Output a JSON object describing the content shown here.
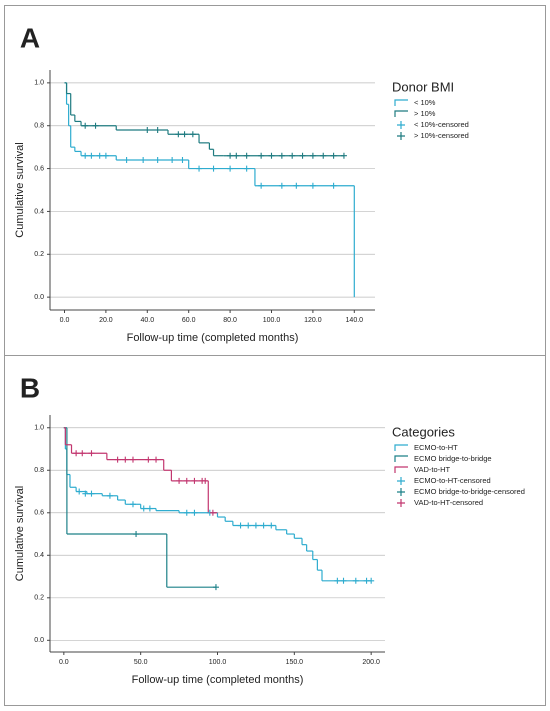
{
  "chart_data": [
    {
      "type": "line",
      "step": true,
      "panel_label": "A",
      "legend_title": "Donor BMI",
      "x_label": "Follow-up time (completed months)",
      "y_label": "Cumulative survival",
      "xlim": [
        -7,
        150
      ],
      "ylim": [
        -0.06,
        1.06
      ],
      "xticks": [
        {
          "value": 0,
          "label": "0.0"
        },
        {
          "value": 20,
          "label": "20.0"
        },
        {
          "value": 40,
          "label": "40.0"
        },
        {
          "value": 60,
          "label": "60.0"
        },
        {
          "value": 80,
          "label": "80.0"
        },
        {
          "value": 100,
          "label": "100.0"
        },
        {
          "value": 120,
          "label": "120.0"
        },
        {
          "value": 140,
          "label": "140.0"
        }
      ],
      "yticks": [
        {
          "value": 0,
          "label": "0.0"
        },
        0.2,
        0.4,
        0.6,
        0.8,
        {
          "value": 1,
          "label": "1.0"
        }
      ],
      "grid": true,
      "series": [
        {
          "name": "< 10%",
          "style": "step",
          "color": "#2eaccf",
          "x": [
            0,
            1,
            2,
            3,
            5,
            8,
            25,
            60,
            92,
            140
          ],
          "values": [
            1.0,
            0.9,
            0.8,
            0.7,
            0.68,
            0.66,
            0.64,
            0.6,
            0.52,
            0.0
          ]
        },
        {
          "name": "> 10%",
          "style": "step",
          "color": "#1f7b80",
          "x": [
            0,
            1,
            3,
            5,
            8,
            25,
            50,
            65,
            70,
            72,
            77,
            135
          ],
          "values": [
            1.0,
            0.95,
            0.85,
            0.82,
            0.8,
            0.78,
            0.76,
            0.72,
            0.69,
            0.66,
            0.66,
            0.66
          ]
        },
        {
          "name": "< 10%-censored",
          "style": "censored",
          "color": "#2eaccf",
          "x": [
            10,
            13,
            17,
            20,
            30,
            38,
            45,
            52,
            57,
            65,
            72,
            80,
            88,
            95,
            105,
            112,
            120,
            130
          ],
          "values": [
            0.66,
            0.66,
            0.66,
            0.66,
            0.64,
            0.64,
            0.64,
            0.64,
            0.64,
            0.6,
            0.6,
            0.6,
            0.6,
            0.52,
            0.52,
            0.52,
            0.52,
            0.52
          ]
        },
        {
          "name": "> 10%-censored",
          "style": "censored",
          "color": "#1f7b80",
          "x": [
            10,
            15,
            40,
            45,
            55,
            58,
            62,
            80,
            83,
            88,
            95,
            100,
            105,
            110,
            115,
            120,
            125,
            130,
            135
          ],
          "values": [
            0.8,
            0.8,
            0.78,
            0.78,
            0.76,
            0.76,
            0.76,
            0.66,
            0.66,
            0.66,
            0.66,
            0.66,
            0.66,
            0.66,
            0.66,
            0.66,
            0.66,
            0.66,
            0.66
          ]
        }
      ]
    },
    {
      "type": "line",
      "step": true,
      "panel_label": "B",
      "legend_title": "Categories",
      "x_label": "Follow-up time (completed months)",
      "y_label": "Cumulative survival",
      "xlim": [
        -9,
        209
      ],
      "ylim": [
        -0.055,
        1.06
      ],
      "xticks": [
        {
          "value": 0,
          "label": "0.0"
        },
        {
          "value": 50,
          "label": "50.0"
        },
        {
          "value": 100,
          "label": "100.0"
        },
        {
          "value": 150,
          "label": "150.0"
        },
        {
          "value": 200,
          "label": "200.0"
        }
      ],
      "yticks": [
        {
          "value": 0,
          "label": "0.0"
        },
        0.2,
        0.4,
        0.6,
        0.8,
        {
          "value": 1,
          "label": "1.0"
        }
      ],
      "grid": true,
      "series": [
        {
          "name": "ECMO-to-HT",
          "style": "step",
          "color": "#2eaccf",
          "x": [
            0,
            1,
            2,
            4,
            8,
            15,
            25,
            35,
            40,
            50,
            60,
            75,
            100,
            105,
            110,
            138,
            145,
            150,
            155,
            158,
            162,
            165,
            168,
            200
          ],
          "values": [
            1.0,
            0.9,
            0.78,
            0.72,
            0.7,
            0.69,
            0.68,
            0.66,
            0.64,
            0.62,
            0.61,
            0.6,
            0.58,
            0.56,
            0.54,
            0.52,
            0.5,
            0.48,
            0.45,
            0.42,
            0.38,
            0.33,
            0.28,
            0.28
          ]
        },
        {
          "name": "ECMO bridge-to-bridge",
          "style": "step",
          "color": "#1c8088",
          "x": [
            0,
            2,
            67,
            99
          ],
          "values": [
            1.0,
            0.5,
            0.25,
            0.25
          ]
        },
        {
          "name": "VAD-to-HT",
          "style": "step",
          "color": "#c2366f",
          "x": [
            0,
            1,
            5,
            28,
            65,
            70,
            94,
            100
          ],
          "values": [
            1.0,
            0.92,
            0.88,
            0.85,
            0.8,
            0.75,
            0.6,
            0.6
          ]
        },
        {
          "name": "ECMO-to-HT-censored",
          "style": "censored",
          "color": "#2eaccf",
          "x": [
            10,
            14,
            18,
            30,
            45,
            52,
            56,
            80,
            85,
            95,
            115,
            120,
            125,
            130,
            135,
            178,
            182,
            190,
            197,
            200
          ],
          "values": [
            0.7,
            0.69,
            0.69,
            0.68,
            0.64,
            0.62,
            0.62,
            0.6,
            0.6,
            0.6,
            0.54,
            0.54,
            0.54,
            0.54,
            0.54,
            0.28,
            0.28,
            0.28,
            0.28,
            0.28
          ]
        },
        {
          "name": "ECMO bridge-to-bridge-censored",
          "style": "censored",
          "color": "#1c8088",
          "x": [
            47,
            99
          ],
          "values": [
            0.5,
            0.25
          ]
        },
        {
          "name": "VAD-to-HT-censored",
          "style": "censored",
          "color": "#c2366f",
          "x": [
            8,
            12,
            18,
            35,
            40,
            45,
            55,
            60,
            75,
            80,
            85,
            90,
            92,
            97
          ],
          "values": [
            0.88,
            0.88,
            0.88,
            0.85,
            0.85,
            0.85,
            0.85,
            0.85,
            0.75,
            0.75,
            0.75,
            0.75,
            0.75,
            0.6
          ]
        }
      ]
    }
  ]
}
